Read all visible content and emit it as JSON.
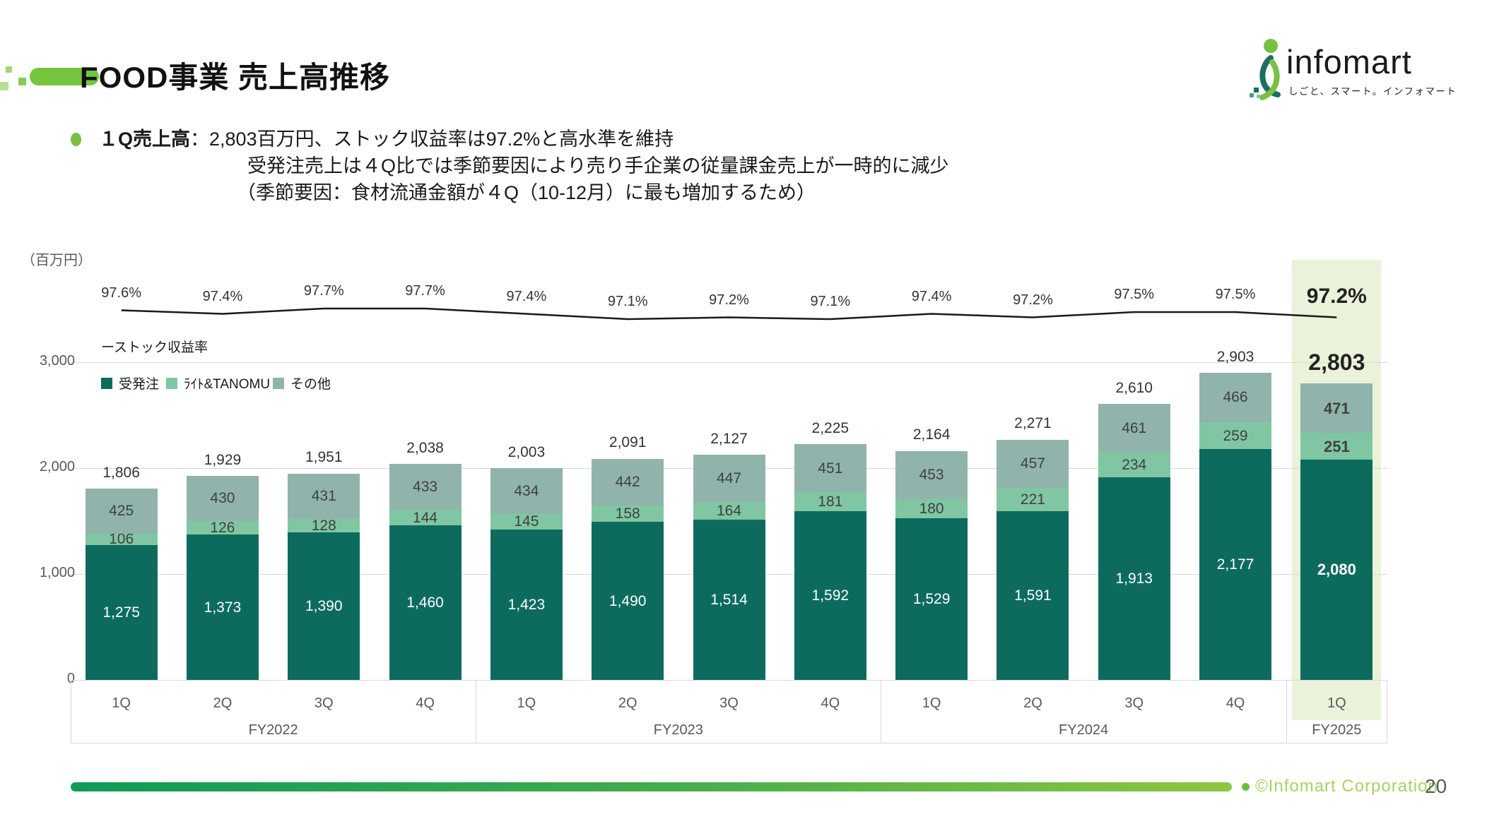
{
  "slide": {
    "title": "FOOD事業 売上高推移",
    "page_number": "20",
    "footer_copyright": "©Infomart Corporation"
  },
  "logo": {
    "name": "infomart",
    "tagline": "しごと、スマート。インフォマート"
  },
  "summary": {
    "heading": "１Q売上高",
    "line1_rest": "：2,803百万円、ストック収益率は97.2%と高水準を維持",
    "line2": "受発注売上は４Q比では季節要因により売り手企業の従量課金売上が一時的に減少",
    "line3": "（季節要因：食材流通金額が４Q（10-12月）に最も増加するため）"
  },
  "chart_data": {
    "type": "bar",
    "stacked": true,
    "unit_label": "（百万円）",
    "ylim": [
      0,
      3000
    ],
    "yticks": [
      0,
      1000,
      2000,
      3000
    ],
    "ytick_labels": [
      "0",
      "1,000",
      "2,000",
      "3,000"
    ],
    "grid": true,
    "categories": [
      "1Q",
      "2Q",
      "3Q",
      "4Q",
      "1Q",
      "2Q",
      "3Q",
      "4Q",
      "1Q",
      "2Q",
      "3Q",
      "4Q",
      "1Q"
    ],
    "groups": [
      {
        "label": "FY2022",
        "span": 4
      },
      {
        "label": "FY2023",
        "span": 4
      },
      {
        "label": "FY2024",
        "span": 4
      },
      {
        "label": "FY2025",
        "span": 1
      }
    ],
    "series": [
      {
        "name": "受発注",
        "color": "#0d6b5e",
        "values": [
          1275,
          1373,
          1390,
          1460,
          1423,
          1490,
          1514,
          1592,
          1529,
          1591,
          1913,
          2177,
          2080
        ]
      },
      {
        "name": "ﾗｲﾄ&TANOMU",
        "color": "#80c6a3",
        "values": [
          106,
          126,
          128,
          144,
          145,
          158,
          164,
          181,
          180,
          221,
          234,
          259,
          251
        ]
      },
      {
        "name": "その他",
        "color": "#90b4ab",
        "values": [
          425,
          430,
          431,
          433,
          434,
          442,
          447,
          451,
          453,
          457,
          461,
          466,
          471
        ]
      }
    ],
    "totals": [
      1806,
      1929,
      1951,
      2038,
      2003,
      2091,
      2127,
      2225,
      2164,
      2271,
      2610,
      2903,
      2803
    ],
    "line_series": {
      "name": "ストック収益率",
      "legend_label": "ーストック収益率",
      "color": "#1a1a1a",
      "values_pct": [
        97.6,
        97.4,
        97.7,
        97.7,
        97.4,
        97.1,
        97.2,
        97.1,
        97.4,
        97.2,
        97.5,
        97.5,
        97.2
      ]
    },
    "highlight_index": 12,
    "highlight_color": "#e9f3d9",
    "legend_position": "top-left"
  }
}
